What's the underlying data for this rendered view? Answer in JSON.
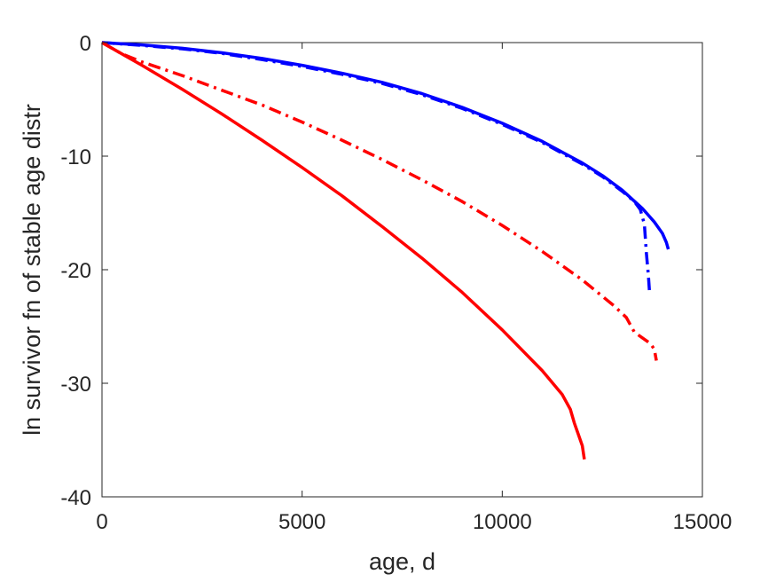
{
  "chart_data": {
    "type": "line",
    "title": "",
    "xlabel": "age, d",
    "ylabel": "ln survivor fn of stable age distr",
    "xlim": [
      0,
      15000
    ],
    "ylim": [
      -40,
      0
    ],
    "xticks": [
      0,
      5000,
      10000,
      15000
    ],
    "yticks": [
      0,
      -10,
      -20,
      -30,
      -40
    ],
    "grid": false,
    "series": [
      {
        "color": "#0000ff",
        "style": "solid",
        "points": [
          [
            0,
            0
          ],
          [
            1000,
            -0.2
          ],
          [
            2000,
            -0.5
          ],
          [
            3000,
            -0.9
          ],
          [
            4000,
            -1.4
          ],
          [
            5000,
            -2.0
          ],
          [
            6000,
            -2.7
          ],
          [
            7000,
            -3.5
          ],
          [
            8000,
            -4.5
          ],
          [
            9000,
            -5.7
          ],
          [
            10000,
            -7.1
          ],
          [
            11000,
            -8.7
          ],
          [
            12000,
            -10.6
          ],
          [
            12500,
            -11.7
          ],
          [
            13000,
            -13.0
          ],
          [
            13500,
            -14.6
          ],
          [
            13800,
            -15.8
          ],
          [
            14000,
            -16.8
          ],
          [
            14100,
            -17.6
          ],
          [
            14150,
            -18.2
          ]
        ]
      },
      {
        "color": "#0000ff",
        "style": "dashdot",
        "points": [
          [
            0,
            0
          ],
          [
            1000,
            -0.25
          ],
          [
            2000,
            -0.55
          ],
          [
            3000,
            -0.95
          ],
          [
            4000,
            -1.5
          ],
          [
            5000,
            -2.1
          ],
          [
            6000,
            -2.8
          ],
          [
            7000,
            -3.6
          ],
          [
            8000,
            -4.6
          ],
          [
            9000,
            -5.8
          ],
          [
            10000,
            -7.2
          ],
          [
            11000,
            -8.8
          ],
          [
            12000,
            -10.7
          ],
          [
            12500,
            -11.8
          ],
          [
            13000,
            -13.1
          ],
          [
            13300,
            -14.0
          ],
          [
            13450,
            -14.7
          ],
          [
            13550,
            -16.0
          ],
          [
            13600,
            -18.5
          ],
          [
            13650,
            -20.5
          ],
          [
            13680,
            -22.0
          ]
        ]
      },
      {
        "color": "#ff0000",
        "style": "dashdot",
        "points": [
          [
            0,
            0
          ],
          [
            500,
            -1.0
          ],
          [
            1000,
            -1.7
          ],
          [
            2000,
            -2.9
          ],
          [
            3000,
            -4.2
          ],
          [
            4000,
            -5.5
          ],
          [
            5000,
            -7.0
          ],
          [
            6000,
            -8.6
          ],
          [
            7000,
            -10.3
          ],
          [
            8000,
            -12.1
          ],
          [
            9000,
            -14.0
          ],
          [
            10000,
            -16.1
          ],
          [
            11000,
            -18.4
          ],
          [
            12000,
            -20.9
          ],
          [
            12800,
            -23.2
          ],
          [
            13100,
            -24.2
          ],
          [
            13300,
            -25.5
          ],
          [
            13500,
            -26.0
          ],
          [
            13700,
            -26.5
          ],
          [
            13800,
            -27.0
          ],
          [
            13850,
            -28.0
          ]
        ]
      },
      {
        "color": "#ff0000",
        "style": "solid",
        "points": [
          [
            0,
            0
          ],
          [
            1000,
            -2.0
          ],
          [
            2000,
            -4.1
          ],
          [
            3000,
            -6.3
          ],
          [
            4000,
            -8.6
          ],
          [
            5000,
            -11.0
          ],
          [
            6000,
            -13.5
          ],
          [
            7000,
            -16.2
          ],
          [
            8000,
            -19.0
          ],
          [
            9000,
            -22.0
          ],
          [
            10000,
            -25.3
          ],
          [
            11000,
            -28.9
          ],
          [
            11500,
            -31.0
          ],
          [
            11700,
            -32.3
          ],
          [
            11800,
            -33.5
          ],
          [
            11900,
            -34.5
          ],
          [
            12000,
            -35.5
          ],
          [
            12050,
            -36.7
          ]
        ]
      }
    ]
  }
}
